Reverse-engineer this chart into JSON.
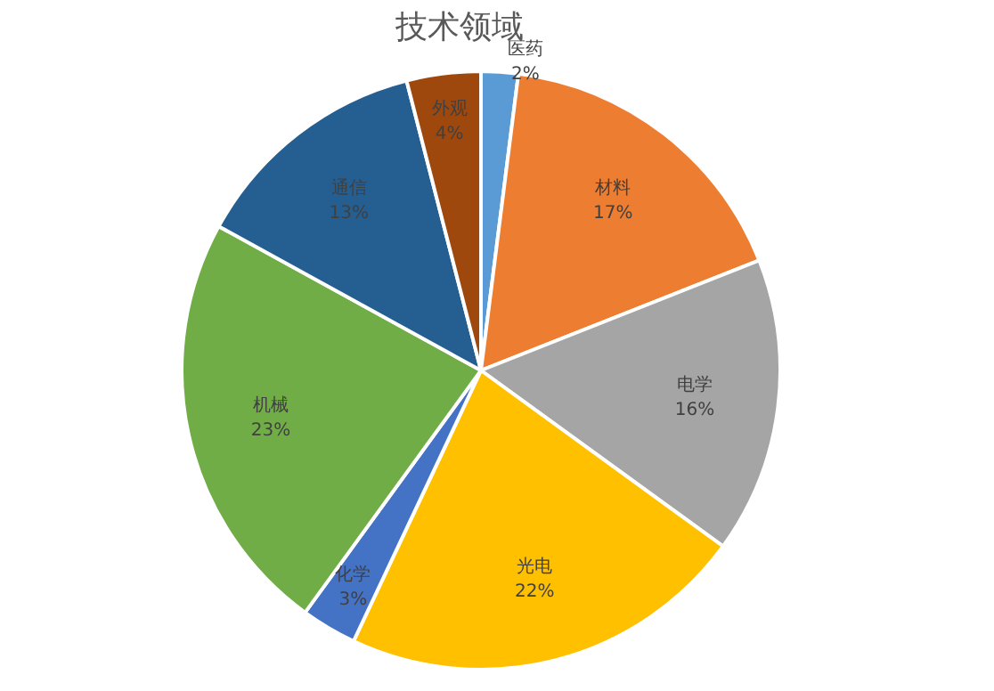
{
  "chart_data": {
    "type": "pie",
    "title": "技术领域",
    "categories": [
      "医药",
      "材料",
      "电学",
      "光电",
      "化学",
      "机械",
      "通信",
      "外观"
    ],
    "values": [
      2,
      17,
      16,
      22,
      3,
      23,
      13,
      4
    ],
    "value_labels": [
      "2%",
      "17%",
      "16%",
      "22%",
      "3%",
      "23%",
      "13%",
      "4%"
    ],
    "colors": [
      "#5b9bd5",
      "#ed7d31",
      "#a5a5a5",
      "#ffc000",
      "#4472c4",
      "#70ad47",
      "#255e91",
      "#9e480e"
    ]
  }
}
